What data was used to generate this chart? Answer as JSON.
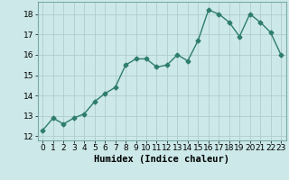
{
  "x": [
    0,
    1,
    2,
    3,
    4,
    5,
    6,
    7,
    8,
    9,
    10,
    11,
    12,
    13,
    14,
    15,
    16,
    17,
    18,
    19,
    20,
    21,
    22,
    23
  ],
  "y": [
    12.3,
    12.9,
    12.6,
    12.9,
    13.1,
    13.7,
    14.1,
    14.4,
    15.5,
    15.8,
    15.8,
    15.4,
    15.5,
    16.0,
    15.7,
    16.7,
    18.2,
    18.0,
    17.6,
    16.9,
    18.0,
    17.6,
    17.1,
    16.0
  ],
  "line_color": "#2e7d6e",
  "marker": "D",
  "marker_size": 2.5,
  "bg_color": "#cce8e8",
  "grid_color": "#b0cccc",
  "xlabel": "Humidex (Indice chaleur)",
  "ylim": [
    11.8,
    18.6
  ],
  "yticks": [
    12,
    13,
    14,
    15,
    16,
    17,
    18
  ],
  "xlim": [
    -0.5,
    23.5
  ],
  "xticks": [
    0,
    1,
    2,
    3,
    4,
    5,
    6,
    7,
    8,
    9,
    10,
    11,
    12,
    13,
    14,
    15,
    16,
    17,
    18,
    19,
    20,
    21,
    22,
    23
  ],
  "xlabel_fontsize": 7.5,
  "tick_fontsize": 6.5,
  "line_width": 1.0
}
